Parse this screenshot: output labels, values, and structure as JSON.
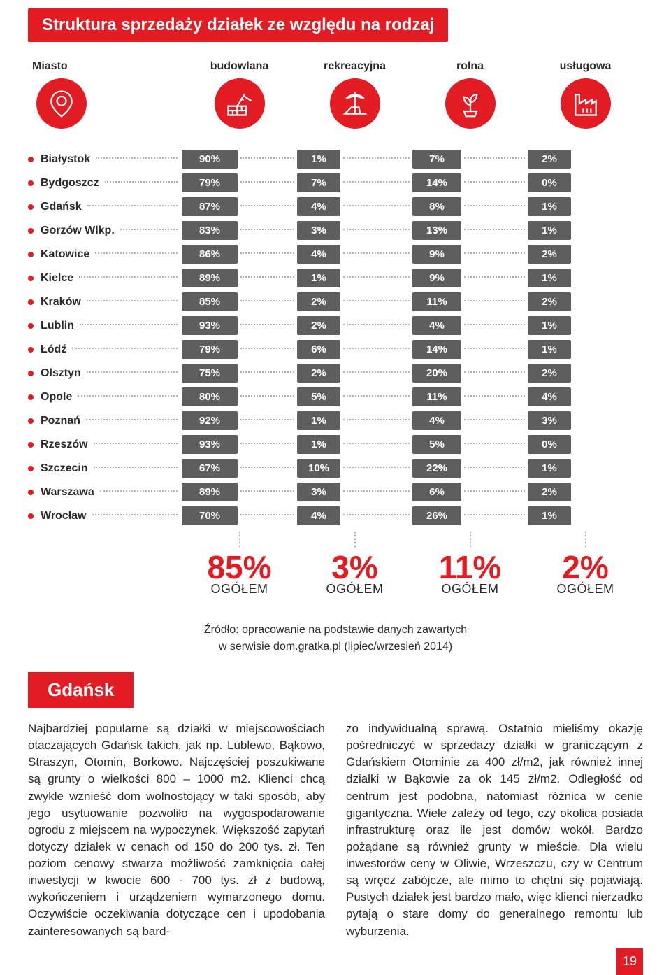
{
  "title": "Struktura sprzedaży działek ze względu na rodzaj",
  "columns": {
    "city": "Miasto",
    "types": [
      "budowlana",
      "rekreacyjna",
      "rolna",
      "usługowa"
    ]
  },
  "rows": [
    {
      "city": "Białystok",
      "vals": [
        "90%",
        "1%",
        "7%",
        "2%"
      ]
    },
    {
      "city": "Bydgoszcz",
      "vals": [
        "79%",
        "7%",
        "14%",
        "0%"
      ]
    },
    {
      "city": "Gdańsk",
      "vals": [
        "87%",
        "4%",
        "8%",
        "1%"
      ]
    },
    {
      "city": "Gorzów Wlkp.",
      "vals": [
        "83%",
        "3%",
        "13%",
        "1%"
      ]
    },
    {
      "city": "Katowice",
      "vals": [
        "86%",
        "4%",
        "9%",
        "2%"
      ]
    },
    {
      "city": "Kielce",
      "vals": [
        "89%",
        "1%",
        "9%",
        "1%"
      ]
    },
    {
      "city": "Kraków",
      "vals": [
        "85%",
        "2%",
        "11%",
        "2%"
      ]
    },
    {
      "city": "Lublin",
      "vals": [
        "93%",
        "2%",
        "4%",
        "1%"
      ]
    },
    {
      "city": "Łódź",
      "vals": [
        "79%",
        "6%",
        "14%",
        "1%"
      ]
    },
    {
      "city": "Olsztyn",
      "vals": [
        "75%",
        "2%",
        "20%",
        "2%"
      ]
    },
    {
      "city": "Opole",
      "vals": [
        "80%",
        "5%",
        "11%",
        "4%"
      ]
    },
    {
      "city": "Poznań",
      "vals": [
        "92%",
        "1%",
        "4%",
        "3%"
      ]
    },
    {
      "city": "Rzeszów",
      "vals": [
        "93%",
        "1%",
        "5%",
        "0%"
      ]
    },
    {
      "city": "Szczecin",
      "vals": [
        "67%",
        "10%",
        "22%",
        "1%"
      ]
    },
    {
      "city": "Warszawa",
      "vals": [
        "89%",
        "3%",
        "6%",
        "2%"
      ]
    },
    {
      "city": "Wrocław",
      "vals": [
        "70%",
        "4%",
        "26%",
        "1%"
      ]
    }
  ],
  "totals": {
    "label": "OGÓŁEM",
    "vals": [
      "85%",
      "3%",
      "11%",
      "2%"
    ]
  },
  "source_line1": "Źródło: opracowanie na podstawie danych zawartych",
  "source_line2": "w serwisie dom.gratka.pl (lipiec/wrzesień 2014)",
  "city_heading": "Gdańsk",
  "body_left": "Najbardziej popularne są działki w miejscowościach otaczających Gdańsk takich, jak np. Lublewo, Bąkowo, Straszyn, Otomin, Borkowo. Najczęściej poszukiwane są grunty o wielkości 800 – 1000 m2. Klienci chcą zwykle wznieść dom wolnostojący w taki sposób, aby jego usytuowanie pozwoliło na wygospodarowanie ogrodu z miejscem na wypoczynek. Większość zapytań dotyczy działek w cenach od 150 do 200 tys. zł. Ten poziom cenowy stwarza możliwość zamknięcia całej inwestycji w kwocie 600 - 700 tys. zł z budową, wykończeniem i urządzeniem wymarzonego domu. Oczywiście oczekiwania dotyczące cen i upodobania zainteresowanych są bard-",
  "body_right": "zo indywidualną sprawą. Ostatnio mieliśmy okazję pośredniczyć w sprzedaży działki w graniczącym z Gdańskiem Otominie za 400 zł/m2, jak również innej działki w Bąkowie za ok 145 zł/m2. Odległość od centrum jest podobna, natomiast różnica w cenie gigantyczna. Wiele zależy od tego, czy okolica posiada infrastrukturę oraz ile jest domów wokół. Bardzo pożądane są również grunty w mieście. Dla wielu inwestorów ceny w Oliwie, Wrzeszczu, czy w Centrum są wręcz zabójcze, ale mimo to chętni się pojawiają. Pustych działek jest bardzo mało, więc klienci nierzadko pytają o stare domy do generalnego remontu lub wyburzenia.",
  "page_number": "19",
  "style": {
    "accent": "#e31b23",
    "box_bg": "#5e5e5e",
    "dot_color": "#b0b0b0",
    "text_color": "#2a2a2a",
    "bg": "#ffffff",
    "title_fontsize": 24,
    "total_fontsize": 46,
    "body_fontsize": 17
  }
}
